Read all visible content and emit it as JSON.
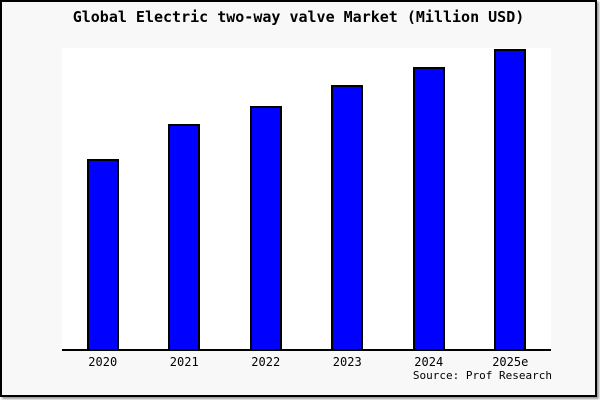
{
  "chart_data": {
    "type": "bar",
    "title": "Global Electric two-way valve Market (Million USD)",
    "categories": [
      "2020",
      "2021",
      "2022",
      "2023",
      "2024",
      "2025e"
    ],
    "values": [
      63,
      75,
      81,
      88,
      94,
      100
    ],
    "xlabel": "",
    "ylabel": "",
    "ylim": [
      0,
      101
    ],
    "y_axis_visible": false,
    "grid": false,
    "legend": false,
    "bar_color": "#0000ff",
    "bar_edge_color": "#000000",
    "frame_background": "#f8f8f8",
    "plot_background": "#ffffff"
  },
  "source": {
    "text": "Source: Prof Research"
  }
}
